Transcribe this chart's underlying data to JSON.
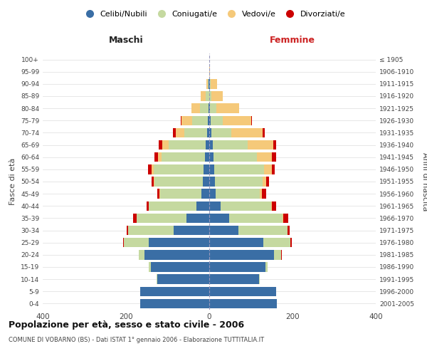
{
  "age_groups": [
    "0-4",
    "5-9",
    "10-14",
    "15-19",
    "20-24",
    "25-29",
    "30-34",
    "35-39",
    "40-44",
    "45-49",
    "50-54",
    "55-59",
    "60-64",
    "65-69",
    "70-74",
    "75-79",
    "80-84",
    "85-89",
    "90-94",
    "95-99",
    "100+"
  ],
  "birth_years": [
    "2001-2005",
    "1996-2000",
    "1991-1995",
    "1986-1990",
    "1981-1985",
    "1976-1980",
    "1971-1975",
    "1966-1970",
    "1961-1965",
    "1956-1960",
    "1951-1955",
    "1946-1950",
    "1941-1945",
    "1936-1940",
    "1931-1935",
    "1926-1930",
    "1921-1925",
    "1916-1920",
    "1911-1915",
    "1906-1910",
    "≤ 1905"
  ],
  "male_celibi": [
    165,
    165,
    125,
    140,
    155,
    145,
    85,
    55,
    30,
    18,
    16,
    14,
    10,
    8,
    5,
    3,
    2,
    0,
    1,
    0,
    0
  ],
  "male_coniugati": [
    0,
    0,
    2,
    5,
    15,
    60,
    110,
    120,
    115,
    100,
    115,
    120,
    105,
    90,
    55,
    38,
    20,
    8,
    3,
    0,
    0
  ],
  "male_vedovi": [
    0,
    0,
    0,
    0,
    0,
    0,
    0,
    0,
    1,
    2,
    3,
    5,
    8,
    15,
    20,
    25,
    20,
    12,
    2,
    0,
    0
  ],
  "male_divorziati": [
    0,
    0,
    0,
    0,
    0,
    2,
    3,
    8,
    5,
    5,
    5,
    8,
    8,
    8,
    8,
    2,
    0,
    0,
    0,
    0,
    0
  ],
  "female_nubili": [
    162,
    160,
    120,
    135,
    155,
    130,
    70,
    48,
    28,
    16,
    14,
    12,
    10,
    8,
    5,
    3,
    2,
    0,
    1,
    0,
    0
  ],
  "female_coniugate": [
    0,
    0,
    2,
    6,
    18,
    65,
    118,
    128,
    120,
    105,
    115,
    120,
    105,
    85,
    48,
    30,
    15,
    5,
    2,
    0,
    0
  ],
  "female_vedove": [
    0,
    0,
    0,
    0,
    0,
    0,
    0,
    1,
    2,
    5,
    8,
    18,
    35,
    60,
    75,
    68,
    55,
    28,
    15,
    2,
    0
  ],
  "female_divorziate": [
    0,
    0,
    0,
    0,
    1,
    3,
    5,
    12,
    10,
    10,
    6,
    8,
    10,
    8,
    5,
    2,
    0,
    0,
    0,
    0,
    0
  ],
  "colors": {
    "celibi": "#3a6ea5",
    "coniugati": "#c5d9a0",
    "vedovi": "#f5c97a",
    "divorziati": "#cc0000"
  },
  "title": "Popolazione per età, sesso e stato civile - 2006",
  "subtitle": "COMUNE DI VOBARNO (BS) - Dati ISTAT 1° gennaio 2006 - Elaborazione TUTTITALIA.IT",
  "xlim": 400,
  "ylabel_left": "Fasce di età",
  "ylabel_right": "Anni di nascita",
  "header_left": "Maschi",
  "header_right": "Femmine",
  "legend_labels": [
    "Celibi/Nubili",
    "Coniugati/e",
    "Vedovi/e",
    "Divorziati/e"
  ]
}
